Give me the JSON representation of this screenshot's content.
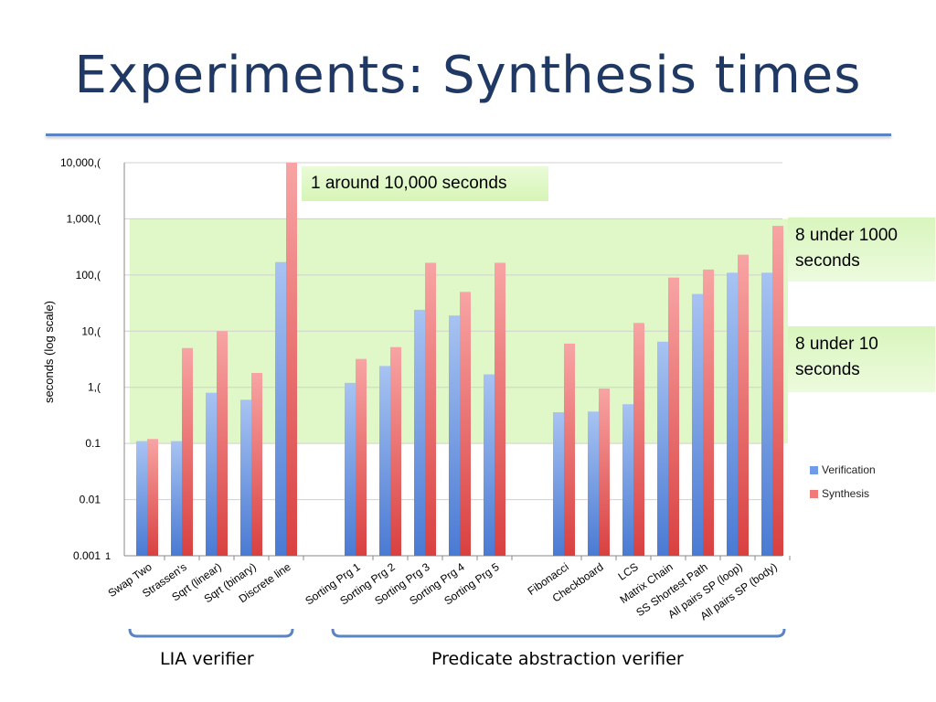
{
  "slide": {
    "title": "Experiments: Synthesis times"
  },
  "callouts": {
    "top": "1 around 10,000 seconds",
    "mid": "8 under 1000 seconds",
    "low": "8 under 10 seconds"
  },
  "groups": {
    "lia": "LIA verifier",
    "predicate": "Predicate abstraction verifier"
  },
  "colors": {
    "verification": "#6f9be8",
    "synthesis": "#f07a7a",
    "band": "#c6f19a",
    "bracket": "#5b84c4"
  },
  "chart_data": {
    "type": "bar",
    "ylabel": "seconds (log scale)",
    "yscale": "log",
    "ylim": [
      0.001,
      10000
    ],
    "y_tick_labels": [
      "10,000,(",
      "1,000,(",
      "100,(",
      "10,(",
      "1,(",
      "0.1",
      "0.01",
      "0.001"
    ],
    "y_tick_values": [
      10000,
      1000,
      100,
      10,
      1,
      0.1,
      0.01,
      0.001
    ],
    "categories": [
      "Swap Two",
      "Strassen's",
      "Sqrt (linear)",
      "Sqrt (binary)",
      "Discrete line",
      "Sorting Prg 1",
      "Sorting Prg 2",
      "Sorting Prg 3",
      "Sorting Prg 4",
      "Sorting Prg 5",
      "Fibonacci",
      "Checkboard",
      "LCS",
      "Matrix Chain",
      "SS Shortest Path",
      "All pairs SP (loop)",
      "All pairs SP (body)"
    ],
    "series": [
      {
        "name": "Verification",
        "values": [
          0.11,
          0.11,
          0.8,
          0.6,
          170,
          1.2,
          2.4,
          24,
          19,
          1.7,
          0.36,
          0.37,
          0.5,
          6.5,
          46,
          110,
          110
        ]
      },
      {
        "name": "Synthesis",
        "values": [
          0.12,
          5,
          10,
          1.8,
          10000,
          3.2,
          5.2,
          165,
          50,
          165,
          6,
          0.95,
          14,
          90,
          125,
          230,
          750
        ]
      }
    ],
    "legend_position": "right",
    "grid": true,
    "shaded_bands": [
      [
        0.1,
        10
      ],
      [
        10,
        1000
      ]
    ]
  }
}
